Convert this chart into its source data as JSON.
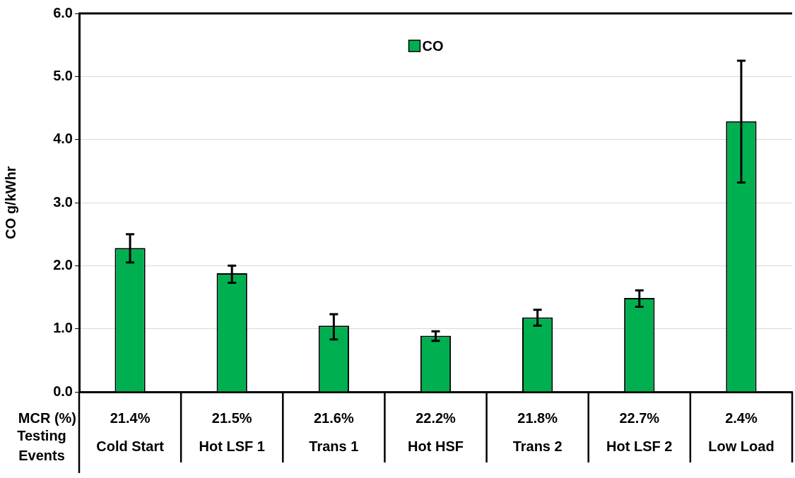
{
  "chart_data": {
    "type": "bar",
    "ylabel": "CO g/kWhr",
    "xlabel": "Testing Events",
    "categories": [
      "Cold Start",
      "Hot LSF 1",
      "Trans 1",
      "Hot HSF",
      "Trans 2",
      "Hot LSF 2",
      "Low Load"
    ],
    "series": [
      {
        "name": "CO",
        "color": "#00b050",
        "values": [
          2.28,
          1.88,
          1.05,
          0.89,
          1.18,
          1.49,
          4.29
        ],
        "errors": [
          [
            2.05,
            2.5
          ],
          [
            1.73,
            2.0
          ],
          [
            0.83,
            1.23
          ],
          [
            0.81,
            0.96
          ],
          [
            1.05,
            1.3
          ],
          [
            1.35,
            1.61
          ],
          [
            3.32,
            5.25
          ]
        ]
      }
    ],
    "ylim": [
      0,
      6
    ],
    "yticks": [
      {
        "value": 0,
        "label": "0.0"
      },
      {
        "value": 1,
        "label": "1.0"
      },
      {
        "value": 2,
        "label": "2.0"
      },
      {
        "value": 3,
        "label": "3.0"
      },
      {
        "value": 4,
        "label": "4.0"
      },
      {
        "value": 5,
        "label": "5.0"
      },
      {
        "value": 6,
        "label": "6.0"
      }
    ],
    "grid": "y",
    "legend": "top",
    "annotations": [
      "MCR (%)",
      "21.4%",
      "21.5%",
      "21.6%",
      "22.2%",
      "21.8%",
      "22.7%",
      "2.4%"
    ]
  }
}
